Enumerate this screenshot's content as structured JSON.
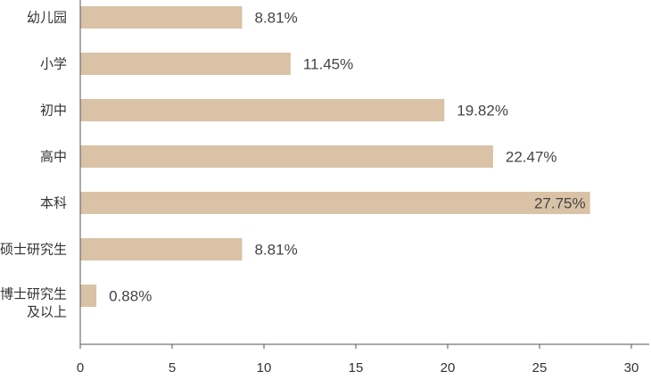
{
  "chart_data": {
    "type": "bar",
    "orientation": "horizontal",
    "categories": [
      "幼儿园",
      "小学",
      "初中",
      "高中",
      "本科",
      "硕士研究生",
      "博士研究生\n及以上"
    ],
    "values": [
      8.81,
      11.45,
      19.82,
      22.47,
      27.75,
      8.81,
      0.88
    ],
    "value_labels": [
      "8.81%",
      "11.45%",
      "19.82%",
      "22.47%",
      "27.75%",
      "8.81%",
      "0.88%"
    ],
    "title": "",
    "xlabel": "",
    "ylabel": "",
    "xlim": [
      0,
      30
    ],
    "xticks": [
      0,
      5,
      10,
      15,
      20,
      25,
      30
    ],
    "grid": false,
    "legend": "none",
    "colors": {
      "bar": "#d9c2a5",
      "axis": "#555555",
      "text": "#333333"
    }
  }
}
